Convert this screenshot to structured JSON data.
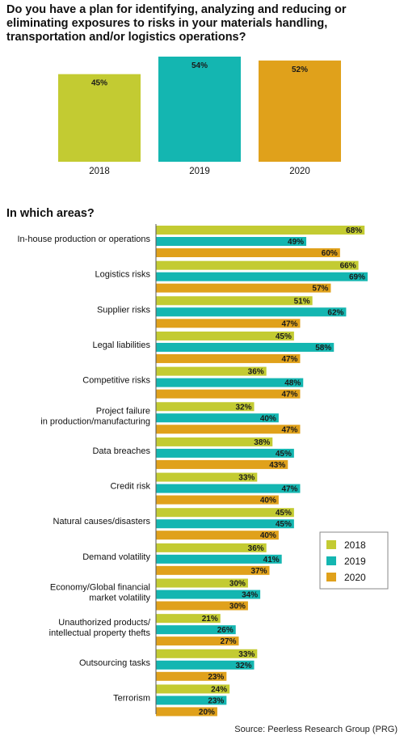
{
  "colors": {
    "y2018": "#c3cb32",
    "y2019": "#14b6b1",
    "y2020": "#e0a11b"
  },
  "source": "Source: Peerless Research Group (PRG)",
  "chart_data": [
    {
      "type": "bar",
      "title": "Do you have a plan for identifying, analyzing and reducing or eliminating exposures to risks in your materials handling, transportation and/or logistics operations?",
      "categories": [
        "2018",
        "2019",
        "2020"
      ],
      "values": [
        45,
        54,
        52
      ],
      "labels": [
        "45%",
        "54%",
        "52%"
      ]
    },
    {
      "type": "bar",
      "orientation": "horizontal",
      "title": "In which areas?",
      "categories": [
        [
          "In-house production or operations"
        ],
        [
          "Logistics risks"
        ],
        [
          "Supplier risks"
        ],
        [
          "Legal liabilities"
        ],
        [
          "Competitive risks"
        ],
        [
          "Project failure",
          "in production/manufacturing"
        ],
        [
          "Data breaches"
        ],
        [
          "Credit risk"
        ],
        [
          "Natural causes/disasters"
        ],
        [
          "Demand volatility"
        ],
        [
          "Economy/Global financial",
          "market volatility"
        ],
        [
          "Unauthorized products/",
          "intellectual property thefts"
        ],
        [
          "Outsourcing tasks"
        ],
        [
          "Terrorism"
        ]
      ],
      "series": [
        {
          "name": "2018",
          "values": [
            68,
            66,
            51,
            45,
            36,
            32,
            38,
            33,
            45,
            36,
            30,
            21,
            33,
            24
          ]
        },
        {
          "name": "2019",
          "values": [
            49,
            69,
            62,
            58,
            48,
            40,
            45,
            47,
            45,
            41,
            34,
            26,
            32,
            23
          ]
        },
        {
          "name": "2020",
          "values": [
            60,
            57,
            47,
            47,
            47,
            47,
            43,
            40,
            40,
            37,
            30,
            27,
            23,
            20
          ]
        }
      ],
      "legend": {
        "placement": "right",
        "entries": [
          "2018",
          "2019",
          "2020"
        ]
      }
    }
  ]
}
